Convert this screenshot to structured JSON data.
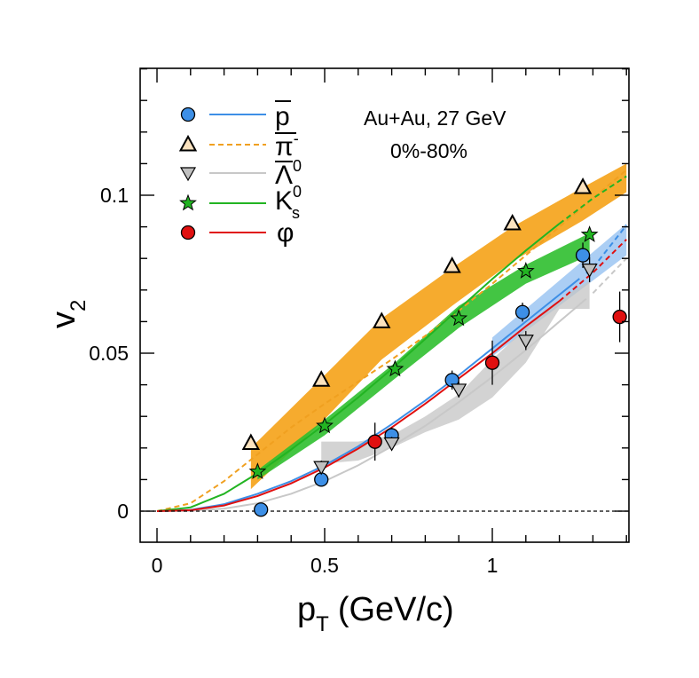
{
  "chart_data": {
    "type": "scatter",
    "title": "",
    "xlabel": "p_T (GeV/c)",
    "xlabel_main": "p",
    "xlabel_sub": "T",
    "xlabel_unit": "(GeV/c)",
    "ylabel": "v_2",
    "ylabel_main": "v",
    "ylabel_sub": "2",
    "xlim": [
      -0.05,
      1.4
    ],
    "ylim": [
      -0.01,
      0.14
    ],
    "x_ticks": [
      0,
      0.5,
      1
    ],
    "x_tick_labels": [
      "0",
      "0.5",
      "1"
    ],
    "y_ticks": [
      0,
      0.05,
      0.1
    ],
    "y_tick_labels": [
      "0",
      "0.05",
      "0.1"
    ],
    "annotations": [
      "Au+Au, 27 GeV",
      "0%-80%"
    ],
    "legend_placement": "top-left",
    "colors": {
      "pbar": "#3d8fe6",
      "pim": "#f0a020",
      "lambda": "#c8c8c8",
      "k0s": "#22b422",
      "phi": "#e01010"
    },
    "series": [
      {
        "name": "p-bar",
        "legend_main": "p",
        "legend_sup": "",
        "legend_sub": "",
        "marker": "circle",
        "color": "#3d8fe6",
        "x": [
          0.31,
          0.49,
          0.7,
          0.88,
          1.09,
          1.27
        ],
        "y": [
          0.0005,
          0.01,
          0.024,
          0.0415,
          0.063,
          0.081
        ],
        "err": [
          0.001,
          0.0015,
          0.0025,
          0.003,
          0.003,
          0.004
        ],
        "fit_x": [
          0,
          0.1,
          0.2,
          0.3,
          0.4,
          0.5,
          0.6,
          0.7,
          0.8,
          0.9,
          1.0,
          1.1,
          1.2,
          1.3,
          1.4
        ],
        "fit_y": [
          0,
          0.0004,
          0.0022,
          0.0055,
          0.0095,
          0.0145,
          0.0205,
          0.0275,
          0.035,
          0.043,
          0.0515,
          0.06,
          0.0685,
          0.077,
          0.0905
        ],
        "band_x": [
          1.0,
          1.1,
          1.2,
          1.3,
          1.4
        ],
        "band_lo": [
          0.049,
          0.057,
          0.065,
          0.073,
          0.081
        ],
        "band_hi": [
          0.055,
          0.064,
          0.073,
          0.082,
          0.091
        ]
      },
      {
        "name": "pi-",
        "legend_main": "π",
        "legend_sup": "-",
        "legend_sub": "",
        "marker": "triangle-up",
        "color": "#f0a020",
        "x": [
          0.28,
          0.49,
          0.67,
          0.88,
          1.06,
          1.27
        ],
        "y": [
          0.0215,
          0.0415,
          0.06,
          0.0775,
          0.091,
          0.1025
        ],
        "err": [
          0.001,
          0.001,
          0.001,
          0.001,
          0.001,
          0.001
        ],
        "fit_x": [
          0,
          0.1,
          0.2,
          0.3,
          0.4,
          0.5,
          0.6,
          0.7,
          0.8,
          0.9,
          1.0,
          1.1,
          1.2,
          1.3,
          1.4
        ],
        "fit_y": [
          0,
          0.0025,
          0.0095,
          0.018,
          0.0265,
          0.034,
          0.041,
          0.048,
          0.0555,
          0.0635,
          0.072,
          0.081,
          0.09,
          0.099,
          0.108
        ],
        "band_x": [
          0.28,
          0.49,
          0.67,
          0.88,
          1.06,
          1.27,
          1.4
        ],
        "band_lo": [
          0.007,
          0.028,
          0.048,
          0.065,
          0.079,
          0.092,
          0.101
        ],
        "band_hi": [
          0.02,
          0.042,
          0.061,
          0.077,
          0.09,
          0.1025,
          0.11
        ]
      },
      {
        "name": "Lambda0",
        "legend_main": "Λ",
        "legend_sup": "0",
        "legend_sub": "",
        "marker": "triangle-down",
        "color": "#c8c8c8",
        "x": [
          0.49,
          0.7,
          0.9,
          1.1,
          1.29
        ],
        "y": [
          0.014,
          0.0215,
          0.0385,
          0.054,
          0.0765
        ],
        "err": [
          0.002,
          0.002,
          0.0025,
          0.003,
          0.004
        ],
        "fit_x": [
          0,
          0.1,
          0.2,
          0.3,
          0.4,
          0.5,
          0.6,
          0.7,
          0.8,
          0.9,
          1.0,
          1.1,
          1.2,
          1.3,
          1.4
        ],
        "fit_y": [
          0,
          0.0001,
          0.0008,
          0.0025,
          0.0055,
          0.0095,
          0.0145,
          0.0205,
          0.027,
          0.0345,
          0.0425,
          0.051,
          0.06,
          0.069,
          0.08
        ],
        "band_x": [
          0.49,
          0.6,
          0.7,
          0.8,
          0.9,
          1.0,
          1.1,
          1.2,
          1.29
        ],
        "band_lo": [
          0.015,
          0.016,
          0.02,
          0.025,
          0.029,
          0.036,
          0.047,
          0.064,
          0.064
        ],
        "band_hi": [
          0.022,
          0.022,
          0.024,
          0.03,
          0.037,
          0.048,
          0.058,
          0.067,
          0.073
        ]
      },
      {
        "name": "K0s",
        "legend_main": "K",
        "legend_sup": "0",
        "legend_sub": "s",
        "marker": "star",
        "color": "#22b422",
        "x": [
          0.3,
          0.5,
          0.71,
          0.9,
          1.1,
          1.29
        ],
        "y": [
          0.0125,
          0.027,
          0.045,
          0.061,
          0.076,
          0.0875
        ],
        "err": [
          0.001,
          0.001,
          0.001,
          0.001,
          0.001,
          0.001
        ],
        "fit_x": [
          0,
          0.1,
          0.2,
          0.3,
          0.4,
          0.5,
          0.6,
          0.7,
          0.8,
          0.9,
          1.0,
          1.1,
          1.2,
          1.3,
          1.4
        ],
        "fit_y": [
          0,
          0.0012,
          0.0055,
          0.012,
          0.0195,
          0.0275,
          0.036,
          0.045,
          0.0545,
          0.064,
          0.0735,
          0.0825,
          0.091,
          0.099,
          0.106
        ],
        "band_x": [
          0.3,
          0.5,
          0.71,
          0.9,
          1.1,
          1.29
        ],
        "band_lo": [
          0.01,
          0.024,
          0.042,
          0.058,
          0.072,
          0.081
        ],
        "band_hi": [
          0.013,
          0.029,
          0.047,
          0.065,
          0.078,
          0.088
        ]
      },
      {
        "name": "phi",
        "legend_main": "φ",
        "legend_sup": "",
        "legend_sub": "",
        "marker": "circle",
        "color": "#e01010",
        "x": [
          0.65,
          1.0,
          1.38
        ],
        "y": [
          0.022,
          0.047,
          0.0615
        ],
        "err": [
          0.006,
          0.007,
          0.008
        ],
        "fit_x": [
          0,
          0.1,
          0.2,
          0.3,
          0.4,
          0.5,
          0.6,
          0.7,
          0.8,
          0.9,
          1.0,
          1.1,
          1.2,
          1.3,
          1.4
        ],
        "fit_y": [
          0,
          0.0003,
          0.0018,
          0.0048,
          0.0088,
          0.0138,
          0.0198,
          0.0265,
          0.034,
          0.042,
          0.05,
          0.0585,
          0.0665,
          0.0755,
          0.086
        ],
        "band_x": [],
        "band_lo": [],
        "band_hi": []
      }
    ]
  }
}
